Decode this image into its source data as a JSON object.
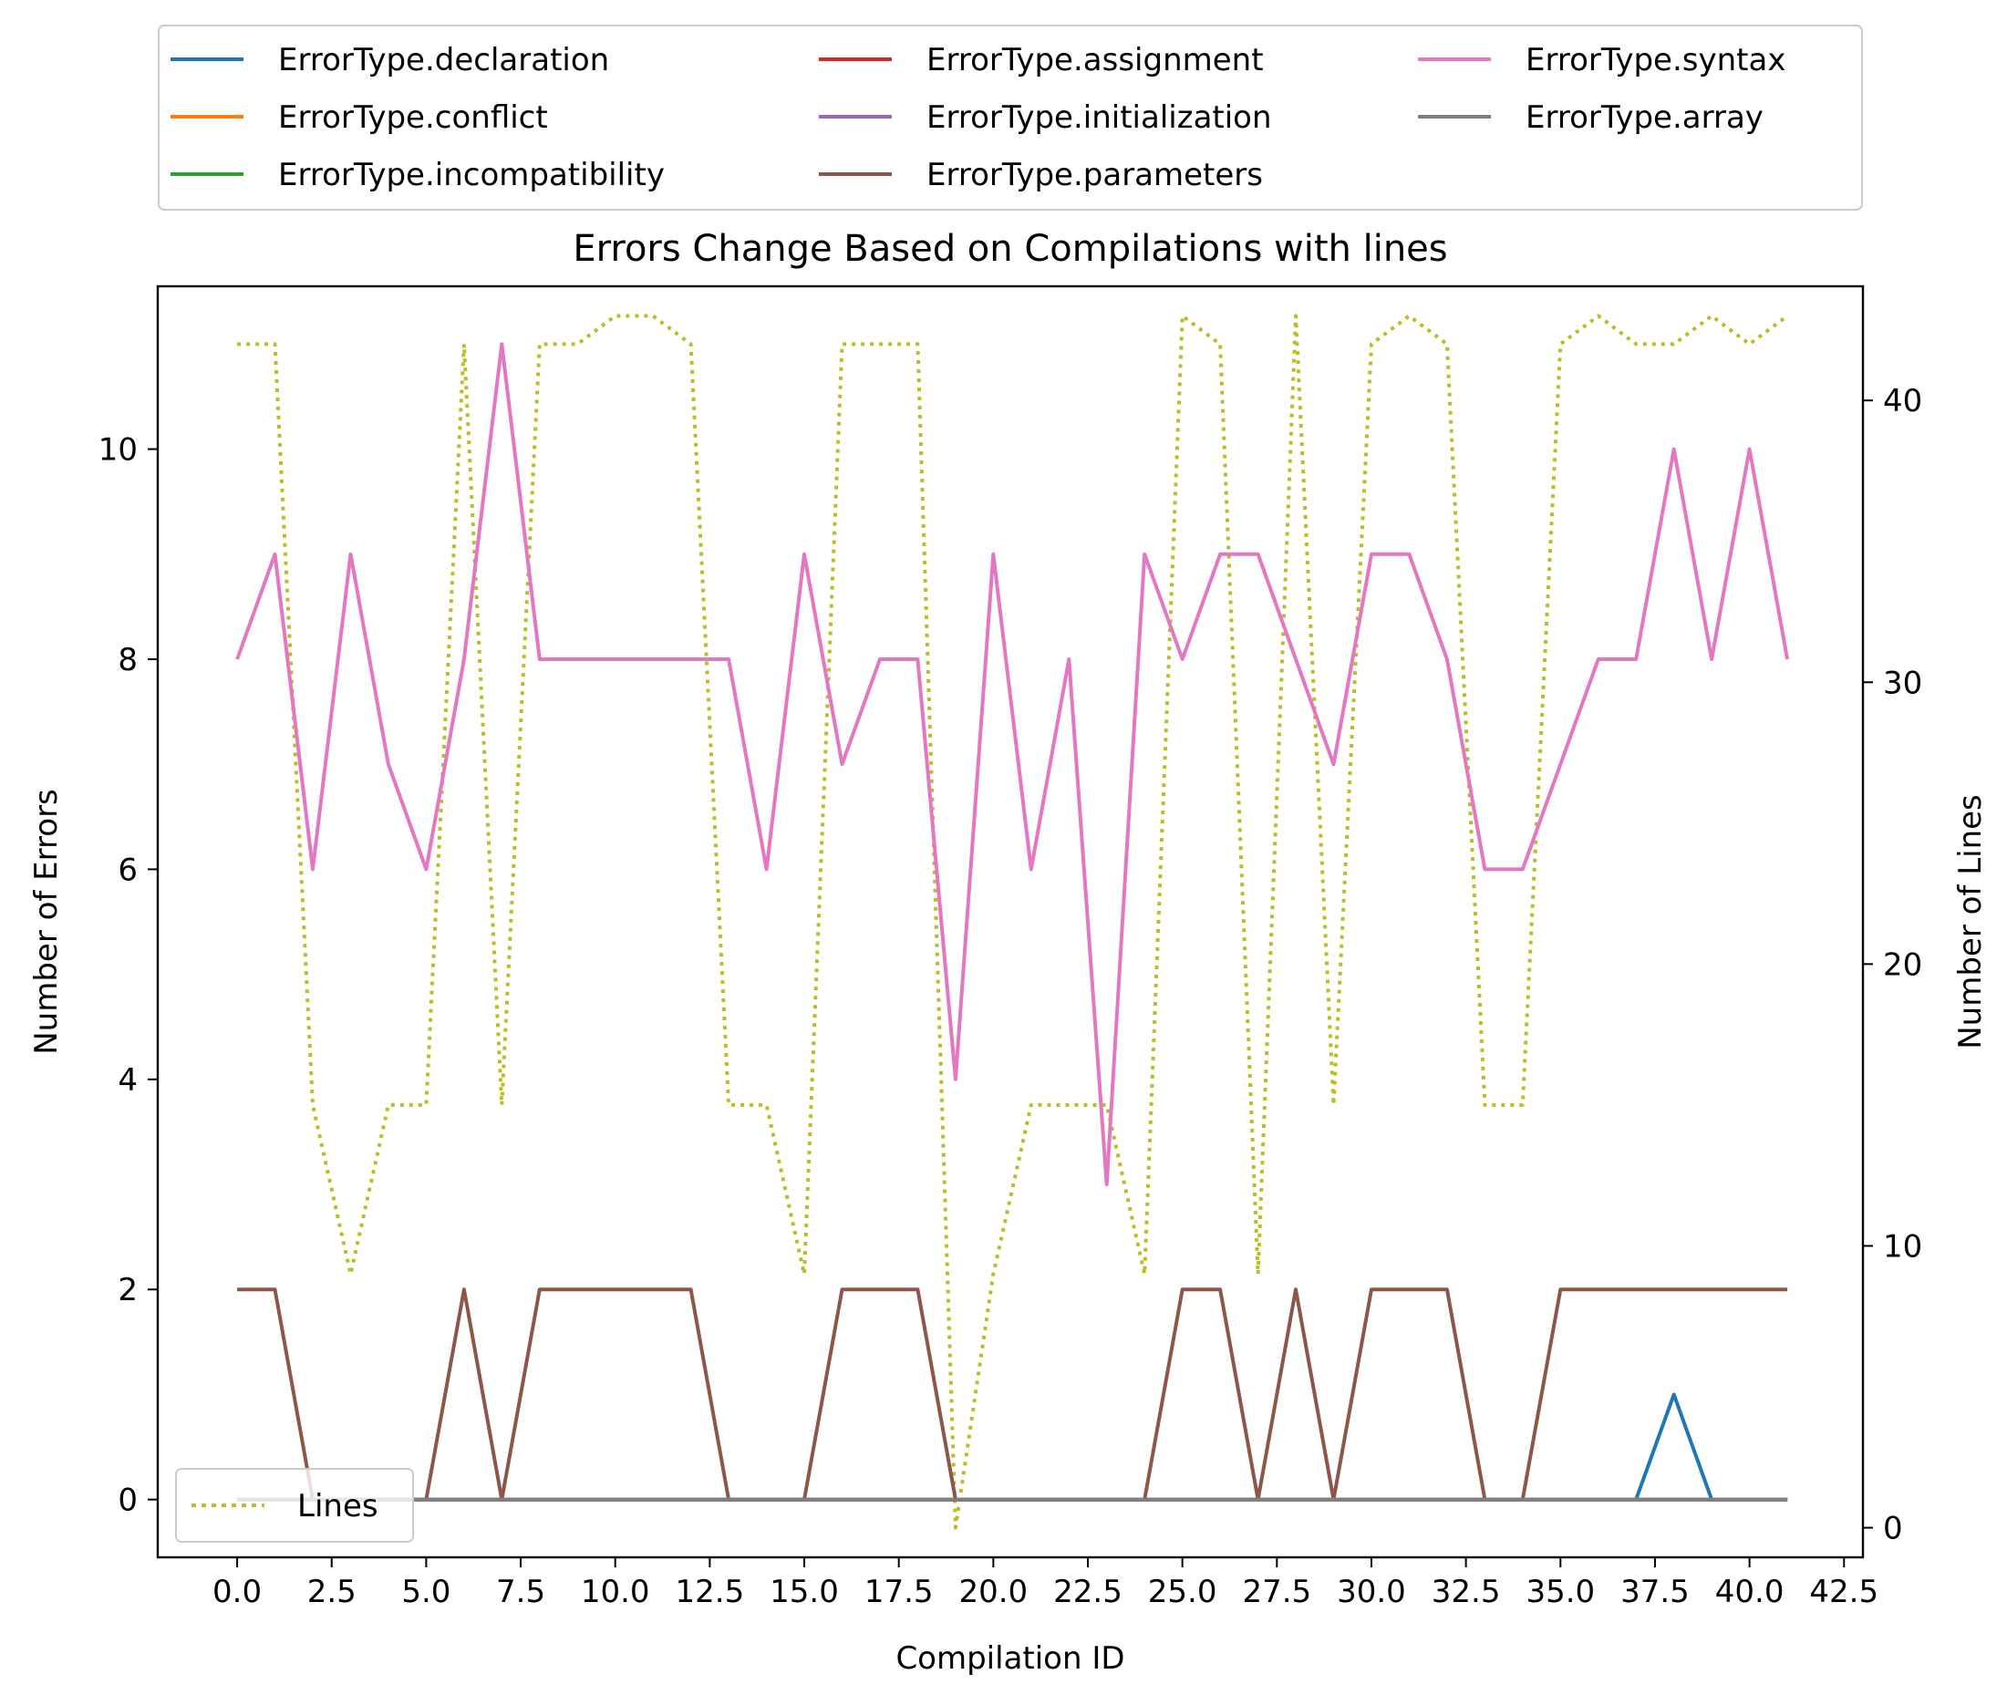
{
  "chart_data": {
    "type": "line",
    "title": "Errors Change Based on Compilations with lines",
    "xlabel": "Compilation ID",
    "ylabel": "Number of Errors",
    "y2label": "Number of Lines",
    "xlim": [
      -2.1,
      43.0
    ],
    "ylim": [
      -0.55,
      11.55
    ],
    "y2lim": [
      -1.05,
      44.05
    ],
    "x_ticks": [
      0,
      2.5,
      5,
      7.5,
      10,
      12.5,
      15,
      17.5,
      20,
      22.5,
      25,
      27.5,
      30,
      32.5,
      35,
      37.5,
      40,
      42.5
    ],
    "x_tick_labels": [
      "0.0",
      "2.5",
      "5.0",
      "7.5",
      "10.0",
      "12.5",
      "15.0",
      "17.5",
      "20.0",
      "22.5",
      "25.0",
      "27.5",
      "30.0",
      "32.5",
      "35.0",
      "37.5",
      "40.0",
      "42.5"
    ],
    "y_ticks": [
      0,
      2,
      4,
      6,
      8,
      10
    ],
    "y_tick_labels": [
      "0",
      "2",
      "4",
      "6",
      "8",
      "10"
    ],
    "y2_ticks": [
      0,
      10,
      20,
      30,
      40
    ],
    "y2_tick_labels": [
      "0",
      "10",
      "20",
      "30",
      "40"
    ],
    "grid": false,
    "legend_position": "above-plot",
    "legend_columns": 3,
    "x": [
      0,
      1,
      2,
      3,
      4,
      5,
      6,
      7,
      8,
      9,
      10,
      11,
      12,
      13,
      14,
      15,
      16,
      17,
      18,
      19,
      20,
      21,
      22,
      23,
      24,
      25,
      26,
      27,
      28,
      29,
      30,
      31,
      32,
      33,
      34,
      35,
      36,
      37,
      38,
      39,
      40,
      41
    ],
    "series": [
      {
        "name": "ErrorType.declaration",
        "color": "#1f77b4",
        "values": [
          0,
          0,
          0,
          0,
          0,
          0,
          0,
          0,
          0,
          0,
          0,
          0,
          0,
          0,
          0,
          0,
          0,
          0,
          0,
          0,
          0,
          0,
          0,
          0,
          0,
          0,
          0,
          0,
          0,
          0,
          0,
          0,
          0,
          0,
          0,
          0,
          0,
          0,
          1,
          0,
          0,
          0
        ]
      },
      {
        "name": "ErrorType.conflict",
        "color": "#ff7f0e",
        "values": [
          0,
          0,
          0,
          0,
          0,
          0,
          0,
          0,
          0,
          0,
          0,
          0,
          0,
          0,
          0,
          0,
          0,
          0,
          0,
          0,
          0,
          0,
          0,
          0,
          0,
          0,
          0,
          0,
          0,
          0,
          0,
          0,
          0,
          0,
          0,
          0,
          0,
          0,
          0,
          0,
          0,
          0
        ]
      },
      {
        "name": "ErrorType.incompatibility",
        "color": "#2ca02c",
        "values": [
          0,
          0,
          0,
          0,
          0,
          0,
          0,
          0,
          0,
          0,
          0,
          0,
          0,
          0,
          0,
          0,
          0,
          0,
          0,
          0,
          0,
          0,
          0,
          0,
          0,
          0,
          0,
          0,
          0,
          0,
          0,
          0,
          0,
          0,
          0,
          0,
          0,
          0,
          0,
          0,
          0,
          0
        ]
      },
      {
        "name": "ErrorType.assignment",
        "color": "#d62728",
        "values": [
          0,
          0,
          0,
          0,
          0,
          0,
          0,
          0,
          0,
          0,
          0,
          0,
          0,
          0,
          0,
          0,
          0,
          0,
          0,
          0,
          0,
          0,
          0,
          0,
          0,
          0,
          0,
          0,
          0,
          0,
          0,
          0,
          0,
          0,
          0,
          0,
          0,
          0,
          0,
          0,
          0,
          0
        ]
      },
      {
        "name": "ErrorType.initialization",
        "color": "#9467bd",
        "values": [
          0,
          0,
          0,
          0,
          0,
          0,
          0,
          0,
          0,
          0,
          0,
          0,
          0,
          0,
          0,
          0,
          0,
          0,
          0,
          0,
          0,
          0,
          0,
          0,
          0,
          0,
          0,
          0,
          0,
          0,
          0,
          0,
          0,
          0,
          0,
          0,
          0,
          0,
          0,
          0,
          0,
          0
        ]
      },
      {
        "name": "ErrorType.parameters",
        "color": "#8c564b",
        "values": [
          2,
          2,
          0,
          0,
          0,
          0,
          2,
          0,
          2,
          2,
          2,
          2,
          2,
          0,
          0,
          0,
          2,
          2,
          2,
          0,
          0,
          0,
          0,
          0,
          0,
          2,
          2,
          0,
          2,
          0,
          2,
          2,
          2,
          0,
          0,
          2,
          2,
          2,
          2,
          2,
          2,
          2
        ]
      },
      {
        "name": "ErrorType.syntax",
        "color": "#e377c2",
        "values": [
          8,
          9,
          6,
          9,
          7,
          6,
          8,
          11,
          8,
          8,
          8,
          8,
          8,
          8,
          6,
          9,
          7,
          8,
          8,
          4,
          9,
          6,
          8,
          3,
          9,
          8,
          9,
          9,
          8,
          7,
          9,
          9,
          8,
          6,
          6,
          7,
          8,
          8,
          10,
          8,
          10,
          8
        ]
      },
      {
        "name": "ErrorType.array",
        "color": "#7f7f7f",
        "values": [
          0,
          0,
          0,
          0,
          0,
          0,
          0,
          0,
          0,
          0,
          0,
          0,
          0,
          0,
          0,
          0,
          0,
          0,
          0,
          0,
          0,
          0,
          0,
          0,
          0,
          0,
          0,
          0,
          0,
          0,
          0,
          0,
          0,
          0,
          0,
          0,
          0,
          0,
          0,
          0,
          0,
          0
        ]
      }
    ],
    "lines_series": {
      "name": "Lines",
      "color": "#bcbd22",
      "style": "dotted",
      "axis": "right",
      "values": [
        42,
        42,
        15,
        9,
        15,
        15,
        42,
        15,
        42,
        42,
        43,
        43,
        42,
        15,
        15,
        9,
        42,
        42,
        42,
        0,
        9,
        15,
        15,
        15,
        9,
        43,
        42,
        9,
        43,
        15,
        42,
        43,
        42,
        15,
        15,
        42,
        43,
        42,
        42,
        43,
        42,
        43
      ]
    }
  }
}
